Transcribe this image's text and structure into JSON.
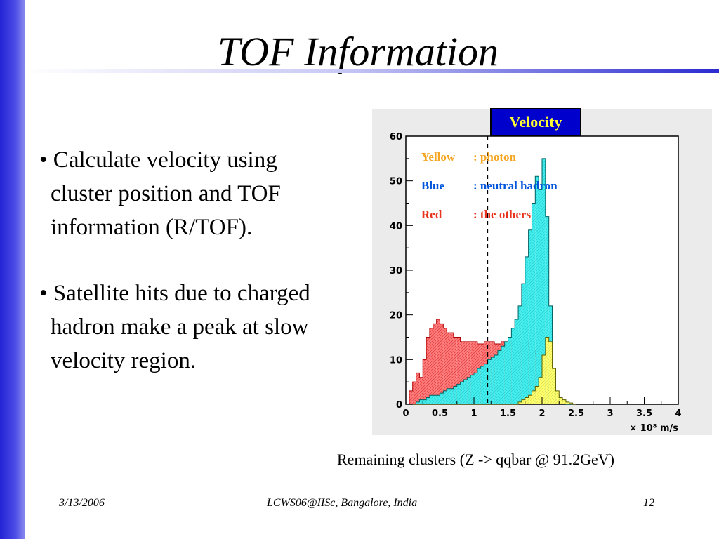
{
  "slide": {
    "title": "TOF Information",
    "bullets": [
      {
        "lines": [
          "• Calculate velocity using",
          "cluster position and TOF",
          "information (R/TOF)."
        ]
      },
      {
        "lines": [
          "• Satellite hits due to charged",
          "hadron make a peak at slow",
          "velocity region."
        ]
      }
    ],
    "caption": "Remaining clusters (Z -> qqbar @ 91.2GeV)",
    "footer": {
      "date": "3/13/2006",
      "venue": "LCWS06@IISc, Bangalore, India",
      "page": "12"
    },
    "colors": {
      "accent_bar": "#2424d6",
      "title_rule": "#2b2bd0"
    }
  },
  "chart_data": {
    "type": "area",
    "title": "Velocity",
    "xlabel": "× 10⁸ m/s",
    "ylabel": "",
    "xlim": [
      0,
      4
    ],
    "ylim": [
      0,
      60
    ],
    "x_ticks": [
      "0",
      "0.5",
      "1",
      "1.5",
      "2",
      "2.5",
      "3",
      "3.5",
      "4"
    ],
    "y_ticks": [
      "0",
      "10",
      "20",
      "30",
      "40",
      "50",
      "60"
    ],
    "reference_line_x": 1.2,
    "legend": [
      {
        "key": "Yellow",
        "label": ": photon",
        "color": "#f5a623"
      },
      {
        "key": "Blue",
        "label": ": neutral hadron",
        "color": "#0055dd"
      },
      {
        "key": "Red",
        "label": ": the others",
        "color": "#e8341c"
      }
    ],
    "bin_edges_start": 0.05,
    "bin_width": 0.05,
    "series": [
      {
        "name": "Red",
        "fill": "#ff6b6b",
        "values": [
          3,
          5,
          7,
          6,
          10,
          15,
          17,
          18,
          19,
          18,
          17,
          16,
          16,
          15,
          15,
          14,
          14,
          14,
          14,
          14,
          13.5,
          13.5,
          14,
          14,
          14,
          13.5,
          13.5,
          14,
          14,
          14,
          14,
          14,
          14,
          14,
          14,
          13,
          12,
          11,
          10,
          8,
          5,
          3,
          2,
          1,
          0.5,
          0.3,
          0.2,
          0.1,
          0
        ]
      },
      {
        "name": "Blue",
        "fill": "#33e8e8",
        "values": [
          0,
          0,
          0.5,
          1,
          1,
          1.5,
          2,
          2,
          2,
          2.5,
          3,
          3.5,
          3.5,
          4,
          4.5,
          5,
          5.5,
          6,
          6.5,
          7,
          8,
          8.5,
          9,
          10,
          10.5,
          11,
          12,
          13,
          14,
          15,
          17,
          19,
          22,
          27,
          33,
          39,
          45,
          51,
          48,
          55,
          42,
          22,
          8,
          2,
          1,
          0.5,
          0,
          0,
          0
        ]
      },
      {
        "name": "Yellow",
        "fill": "#ffff66",
        "values": [
          0,
          0,
          0,
          0,
          0,
          0,
          0,
          0,
          0,
          0,
          0,
          0,
          0,
          0,
          0,
          0,
          0,
          0,
          0,
          0,
          0,
          0,
          0,
          0,
          0,
          0,
          0,
          0,
          0,
          0,
          0,
          0,
          0.5,
          1,
          1.5,
          2,
          3,
          4,
          6,
          11,
          15,
          14,
          8,
          3,
          1.5,
          1,
          0.5,
          0.3,
          0
        ]
      }
    ]
  }
}
